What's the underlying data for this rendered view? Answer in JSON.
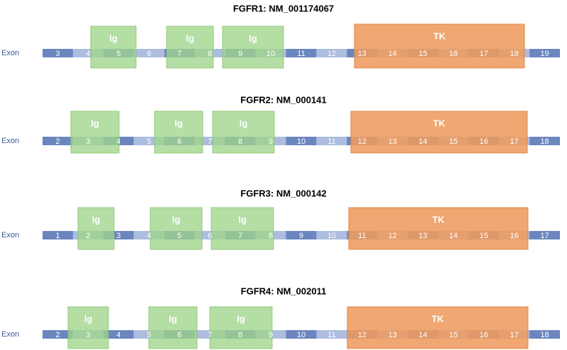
{
  "axis_label": "Exon",
  "colors": {
    "dark": "#6b86bf",
    "light": "#adbde0",
    "ig": "#9fd58b",
    "tk": "#ee9b5d"
  },
  "genes": [
    {
      "title": "FGFR1: NM_001174067",
      "exons": [
        "3",
        "4",
        "5",
        "6",
        "7",
        "8",
        "9",
        "10",
        "11",
        "12",
        "13",
        "14",
        "15",
        "16",
        "17",
        "18",
        "19"
      ],
      "domains": [
        {
          "label": "Ig",
          "exon_start": 1,
          "exon_end": 1
        },
        {
          "label": "Ig",
          "exon_start": 3,
          "exon_end": 4
        },
        {
          "label": "Ig",
          "exon_start": 5,
          "exon_end": 6
        },
        {
          "label": "TK",
          "exon_start": 9,
          "exon_end": 15
        }
      ]
    },
    {
      "title": "FGFR2: NM_000141",
      "exons": [
        "2",
        "3",
        "4",
        "5",
        "6",
        "7",
        "8",
        "9",
        "10",
        "11",
        "12",
        "13",
        "14",
        "15",
        "16",
        "17",
        "18"
      ],
      "domains": [
        {
          "label": "Ig",
          "exon_start": 1,
          "exon_end": 1
        },
        {
          "label": "Ig",
          "exon_start": 3,
          "exon_end": 4
        },
        {
          "label": "Ig",
          "exon_start": 5,
          "exon_end": 6
        },
        {
          "label": "TK",
          "exon_start": 9,
          "exon_end": 15
        }
      ]
    },
    {
      "title": "FGFR3: NM_000142",
      "exons": [
        "1",
        "2",
        "3",
        "4",
        "5",
        "6",
        "7",
        "8",
        "9",
        "10",
        "11",
        "12",
        "13",
        "14",
        "15",
        "16",
        "17"
      ],
      "domains": [
        {
          "label": "Ig",
          "exon_start": 1,
          "exon_end": 1
        },
        {
          "label": "Ig",
          "exon_start": 3,
          "exon_end": 4
        },
        {
          "label": "Ig",
          "exon_start": 5,
          "exon_end": 6
        },
        {
          "label": "TK",
          "exon_start": 9,
          "exon_end": 15
        }
      ]
    },
    {
      "title": "FGFR4: NM_002011",
      "exons": [
        "2",
        "3",
        "4",
        "5",
        "6",
        "7",
        "8",
        "9",
        "10",
        "11",
        "12",
        "13",
        "14",
        "15",
        "16",
        "17",
        "18"
      ],
      "domains": [
        {
          "label": "Ig",
          "exon_start": 1,
          "exon_end": 1
        },
        {
          "label": "Ig",
          "exon_start": 3,
          "exon_end": 4
        },
        {
          "label": "Ig",
          "exon_start": 5,
          "exon_end": 6
        },
        {
          "label": "TK",
          "exon_start": 9,
          "exon_end": 15
        }
      ]
    }
  ]
}
